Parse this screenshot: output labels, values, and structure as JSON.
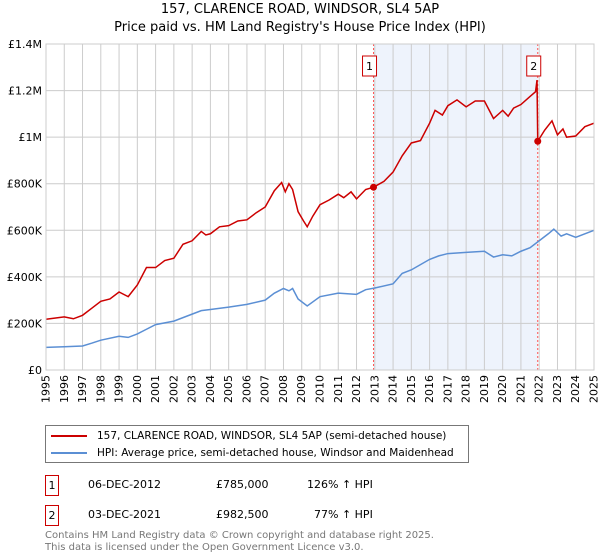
{
  "chart_data": {
    "type": "line",
    "title": "157, CLARENCE ROAD, WINDSOR, SL4 5AP",
    "subtitle": "Price paid vs. HM Land Registry's House Price Index (HPI)",
    "xlim": [
      1995,
      2025
    ],
    "ylim": [
      0,
      1400000
    ],
    "x_ticks": [
      "1995",
      "1996",
      "1997",
      "1998",
      "1999",
      "2000",
      "2001",
      "2002",
      "2003",
      "2004",
      "2005",
      "2006",
      "2007",
      "2008",
      "2009",
      "2010",
      "2011",
      "2012",
      "2013",
      "2014",
      "2015",
      "2016",
      "2017",
      "2018",
      "2019",
      "2020",
      "2021",
      "2022",
      "2023",
      "2024",
      "2025"
    ],
    "y_ticks": [
      {
        "v": 0,
        "l": "£0"
      },
      {
        "v": 200000,
        "l": "£200K"
      },
      {
        "v": 400000,
        "l": "£400K"
      },
      {
        "v": 600000,
        "l": "£600K"
      },
      {
        "v": 800000,
        "l": "£800K"
      },
      {
        "v": 1000000,
        "l": "£1M"
      },
      {
        "v": 1200000,
        "l": "£1.2M"
      },
      {
        "v": 1400000,
        "l": "£1.4M"
      }
    ],
    "grid": true,
    "shaded_range": [
      2012.93,
      2021.92
    ],
    "series": [
      {
        "name": "157, CLARENCE ROAD, WINDSOR, SL4 5AP (semi-detached house)",
        "color": "#cc0000",
        "points": [
          [
            1995,
            218
          ],
          [
            1996,
            228
          ],
          [
            1996.5,
            220
          ],
          [
            1997,
            235
          ],
          [
            1997.5,
            265
          ],
          [
            1998,
            295
          ],
          [
            1998.5,
            305
          ],
          [
            1999,
            335
          ],
          [
            1999.5,
            315
          ],
          [
            2000,
            365
          ],
          [
            2000.5,
            440
          ],
          [
            2001,
            440
          ],
          [
            2001.5,
            470
          ],
          [
            2002,
            480
          ],
          [
            2002.5,
            540
          ],
          [
            2003,
            555
          ],
          [
            2003.5,
            595
          ],
          [
            2003.75,
            580
          ],
          [
            2004,
            585
          ],
          [
            2004.5,
            615
          ],
          [
            2005,
            620
          ],
          [
            2005.5,
            640
          ],
          [
            2006,
            645
          ],
          [
            2006.5,
            675
          ],
          [
            2007,
            700
          ],
          [
            2007.5,
            770
          ],
          [
            2007.9,
            805
          ],
          [
            2008.1,
            765
          ],
          [
            2008.3,
            800
          ],
          [
            2008.5,
            775
          ],
          [
            2008.8,
            680
          ],
          [
            2009.1,
            640
          ],
          [
            2009.3,
            615
          ],
          [
            2009.6,
            660
          ],
          [
            2010,
            710
          ],
          [
            2010.5,
            730
          ],
          [
            2011,
            755
          ],
          [
            2011.3,
            740
          ],
          [
            2011.7,
            765
          ],
          [
            2012,
            735
          ],
          [
            2012.5,
            775
          ],
          [
            2012.93,
            785
          ],
          [
            2013.5,
            810
          ],
          [
            2014,
            850
          ],
          [
            2014.5,
            920
          ],
          [
            2015,
            975
          ],
          [
            2015.5,
            985
          ],
          [
            2016,
            1060
          ],
          [
            2016.3,
            1115
          ],
          [
            2016.7,
            1095
          ],
          [
            2017,
            1135
          ],
          [
            2017.5,
            1160
          ],
          [
            2018,
            1130
          ],
          [
            2018.5,
            1155
          ],
          [
            2019,
            1155
          ],
          [
            2019.5,
            1080
          ],
          [
            2020,
            1115
          ],
          [
            2020.3,
            1090
          ],
          [
            2020.6,
            1125
          ],
          [
            2021,
            1140
          ],
          [
            2021.5,
            1175
          ],
          [
            2021.8,
            1195
          ],
          [
            2021.88,
            1245
          ],
          [
            2021.92,
            982.5
          ],
          [
            2022.3,
            1030
          ],
          [
            2022.7,
            1070
          ],
          [
            2023,
            1010
          ],
          [
            2023.3,
            1035
          ],
          [
            2023.5,
            1000
          ],
          [
            2024,
            1005
          ],
          [
            2024.5,
            1045
          ],
          [
            2025,
            1060
          ]
        ]
      },
      {
        "name": "HPI: Average price, semi-detached house, Windsor and Maidenhead",
        "color": "#5b8fd4",
        "points": [
          [
            1995,
            97
          ],
          [
            1996,
            100
          ],
          [
            1997,
            103
          ],
          [
            1997.5,
            115
          ],
          [
            1998,
            128
          ],
          [
            1999,
            145
          ],
          [
            1999.5,
            140
          ],
          [
            2000,
            155
          ],
          [
            2000.5,
            175
          ],
          [
            2001,
            195
          ],
          [
            2002,
            210
          ],
          [
            2003,
            240
          ],
          [
            2003.5,
            255
          ],
          [
            2004,
            260
          ],
          [
            2005,
            270
          ],
          [
            2006,
            282
          ],
          [
            2007,
            300
          ],
          [
            2007.5,
            330
          ],
          [
            2008,
            350
          ],
          [
            2008.3,
            340
          ],
          [
            2008.5,
            350
          ],
          [
            2008.8,
            305
          ],
          [
            2009.3,
            275
          ],
          [
            2010,
            315
          ],
          [
            2011,
            330
          ],
          [
            2012,
            325
          ],
          [
            2012.5,
            345
          ],
          [
            2013,
            352
          ],
          [
            2014,
            370
          ],
          [
            2014.5,
            415
          ],
          [
            2015,
            430
          ],
          [
            2016,
            475
          ],
          [
            2016.5,
            490
          ],
          [
            2017,
            500
          ],
          [
            2018,
            505
          ],
          [
            2019,
            510
          ],
          [
            2019.5,
            485
          ],
          [
            2020,
            495
          ],
          [
            2020.5,
            490
          ],
          [
            2021,
            510
          ],
          [
            2021.5,
            525
          ],
          [
            2022,
            555
          ],
          [
            2022.5,
            585
          ],
          [
            2022.8,
            605
          ],
          [
            2023.2,
            575
          ],
          [
            2023.5,
            585
          ],
          [
            2024,
            570
          ],
          [
            2025,
            600
          ]
        ]
      }
    ],
    "y_unit_of_points": "thousands GBP",
    "sales": [
      {
        "id": "1",
        "x": 2012.93,
        "y": 785
      },
      {
        "id": "2",
        "x": 2021.92,
        "y": 982.5
      }
    ]
  },
  "legend": {
    "red": "157, CLARENCE ROAD, WINDSOR, SL4 5AP (semi-detached house)",
    "blue": "HPI: Average price, semi-detached house, Windsor and Maidenhead"
  },
  "transactions": [
    {
      "id": "1",
      "date": "06-DEC-2012",
      "price": "£785,000",
      "hpi": "126% ↑ HPI"
    },
    {
      "id": "2",
      "date": "03-DEC-2021",
      "price": "£982,500",
      "hpi": "77% ↑ HPI"
    }
  ],
  "footer": {
    "line1": "Contains HM Land Registry data © Crown copyright and database right 2025.",
    "line2": "This data is licensed under the Open Government Licence v3.0."
  }
}
